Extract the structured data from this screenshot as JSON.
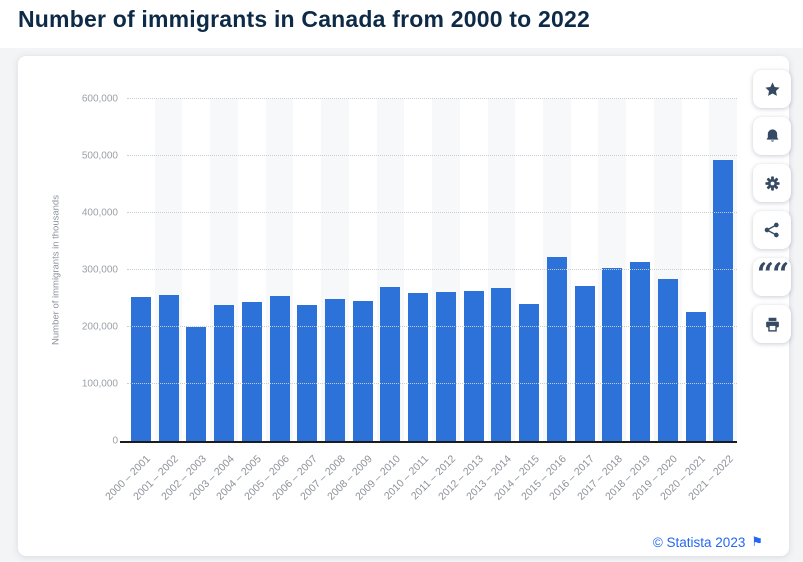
{
  "page": {
    "title": "Number of immigrants in Canada from 2000 to 2022"
  },
  "colors": {
    "bar": "#2d72d8",
    "title": "#0d2a47",
    "credit_link": "#2467f2",
    "toolbar_icon": "#364a63",
    "stripe": "#f7f8f9",
    "gridline": "#c9cdd2"
  },
  "chart_data": {
    "type": "bar",
    "title": "Number of immigrants in Canada from 2000 to 2022",
    "xlabel": "",
    "ylabel": "Number of immigrants in thousands",
    "ylim": [
      0,
      600000
    ],
    "grid": "horizontal-dotted",
    "legend": "none",
    "y_ticks": [
      {
        "value": 0,
        "label": "0"
      },
      {
        "value": 100000,
        "label": "100,000"
      },
      {
        "value": 200000,
        "label": "200,000"
      },
      {
        "value": 300000,
        "label": "300,000"
      },
      {
        "value": 400000,
        "label": "400,000"
      },
      {
        "value": 500000,
        "label": "500,000"
      },
      {
        "value": 600000,
        "label": "600,000"
      }
    ],
    "categories": [
      "2000 – 2001",
      "2001 – 2002",
      "2002 – 2003",
      "2003 – 2004",
      "2004 – 2005",
      "2005 – 2006",
      "2006 – 2007",
      "2007 – 2008",
      "2008 – 2009",
      "2009 – 2010",
      "2010 – 2011",
      "2011 – 2012",
      "2012 – 2013",
      "2013 – 2014",
      "2014 – 2015",
      "2015 – 2016",
      "2016 – 2017",
      "2017 – 2018",
      "2018 – 2019",
      "2019 – 2020",
      "2020 – 2021",
      "2021 – 2022"
    ],
    "values": [
      252527,
      256405,
      199170,
      239083,
      244578,
      254359,
      238125,
      249622,
      245289,
      270581,
      259021,
      260786,
      263101,
      267924,
      239763,
      323192,
      272707,
      303325,
      313580,
      284157,
      226203,
      493054
    ]
  },
  "toolbar": {
    "buttons": [
      {
        "name": "favorite",
        "icon": "star-icon"
      },
      {
        "name": "alerts",
        "icon": "bell-icon"
      },
      {
        "name": "settings",
        "icon": "gear-icon"
      },
      {
        "name": "share",
        "icon": "share-icon"
      },
      {
        "name": "cite",
        "icon": "quote-icon"
      },
      {
        "name": "print",
        "icon": "printer-icon"
      }
    ]
  },
  "footer": {
    "credit": "© Statista 2023",
    "flag_icon": "flag-icon"
  }
}
